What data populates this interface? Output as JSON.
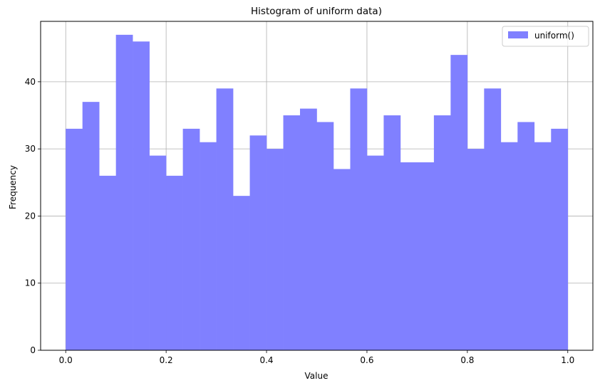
{
  "chart_data": {
    "type": "bar",
    "title": "Histogram of uniform data)",
    "xlabel": "Value",
    "ylabel": "Frequency",
    "xlim": [
      -0.05,
      1.05
    ],
    "ylim": [
      0,
      49
    ],
    "xticks": [
      0.0,
      0.2,
      0.4,
      0.6,
      0.8,
      1.0
    ],
    "xtick_labels": [
      "0.0",
      "0.2",
      "0.4",
      "0.6",
      "0.8",
      "1.0"
    ],
    "yticks": [
      0,
      10,
      20,
      30,
      40
    ],
    "ytick_labels": [
      "0",
      "10",
      "20",
      "30",
      "40"
    ],
    "grid": true,
    "legend_position": "top-right",
    "bin_range": [
      0,
      1
    ],
    "bins": 30,
    "series": [
      {
        "name": "uniform()",
        "color": "#8080ff",
        "values": [
          33,
          37,
          26,
          47,
          46,
          29,
          26,
          33,
          31,
          39,
          23,
          32,
          30,
          35,
          36,
          34,
          27,
          39,
          29,
          35,
          28,
          28,
          35,
          44,
          30,
          39,
          31,
          34,
          31,
          33
        ]
      }
    ]
  }
}
